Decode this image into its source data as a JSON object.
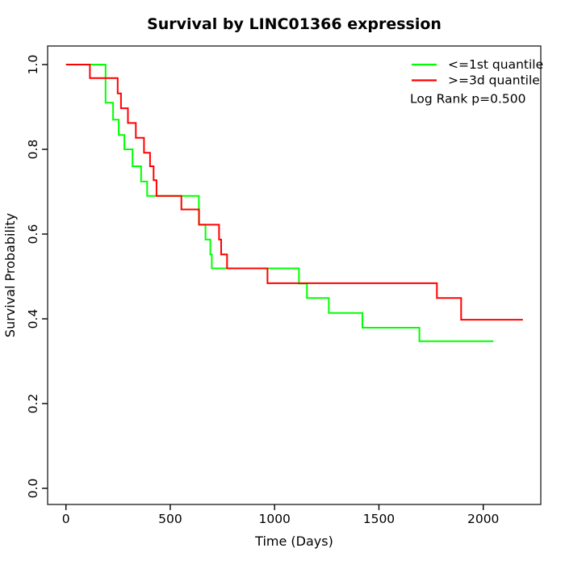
{
  "title": "Survival by LINC01366 expression",
  "annotation": "Log Rank p=0.500",
  "chart_data": {
    "type": "line",
    "subtype": "kaplan-meier-step",
    "title": "Survival by LINC01366 expression",
    "xlabel": "Time (Days)",
    "ylabel": "Survival Probability",
    "xlim": [
      0,
      2200
    ],
    "ylim": [
      0.0,
      1.0
    ],
    "x_ticks": [
      0,
      500,
      1000,
      1500,
      2000
    ],
    "x_tick_labels": [
      "0",
      "500",
      "1000",
      "1500",
      "2000"
    ],
    "y_ticks": [
      0.0,
      0.2,
      0.4,
      0.6,
      0.8,
      1.0
    ],
    "y_tick_labels": [
      "0.0",
      "0.2",
      "0.4",
      "0.6",
      "0.8",
      "1.0"
    ],
    "grid": false,
    "legend_position": "top-right",
    "annotation": "Log Rank p=0.500",
    "axis_color": "#000000",
    "background_color": "#ffffff",
    "series": [
      {
        "name": "<=1st quantile",
        "color": "#00ff00",
        "end_x": 2049,
        "points": [
          [
            0,
            1.0
          ],
          [
            190,
            0.91
          ],
          [
            226,
            0.87
          ],
          [
            253,
            0.834
          ],
          [
            280,
            0.8
          ],
          [
            319,
            0.76
          ],
          [
            360,
            0.724
          ],
          [
            389,
            0.69
          ],
          [
            637,
            0.622
          ],
          [
            669,
            0.587
          ],
          [
            692,
            0.552
          ],
          [
            699,
            0.519
          ],
          [
            1117,
            0.483
          ],
          [
            1155,
            0.449
          ],
          [
            1260,
            0.414
          ],
          [
            1421,
            0.379
          ],
          [
            1694,
            0.347
          ]
        ]
      },
      {
        "name": ">=3d quantile",
        "color": "#ff0000",
        "end_x": 2190,
        "points": [
          [
            0,
            1.0
          ],
          [
            115,
            0.968
          ],
          [
            248,
            0.932
          ],
          [
            264,
            0.897
          ],
          [
            297,
            0.862
          ],
          [
            335,
            0.827
          ],
          [
            374,
            0.792
          ],
          [
            403,
            0.76
          ],
          [
            420,
            0.727
          ],
          [
            434,
            0.69
          ],
          [
            553,
            0.658
          ],
          [
            638,
            0.622
          ],
          [
            734,
            0.587
          ],
          [
            744,
            0.552
          ],
          [
            772,
            0.519
          ],
          [
            966,
            0.484
          ],
          [
            1778,
            0.449
          ],
          [
            1894,
            0.398
          ]
        ]
      }
    ]
  }
}
